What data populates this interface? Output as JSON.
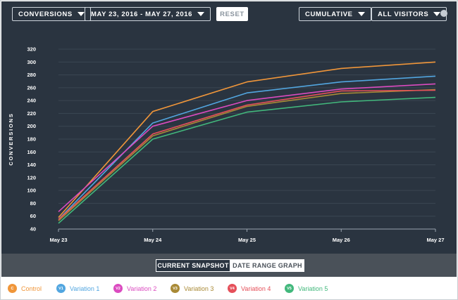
{
  "toolbar": {
    "metric_label": "CONVERSIONS",
    "date_range_label": "MAY 23, 2016 - MAY 27, 2016",
    "reset_label": "RESET",
    "mode_label": "CUMULATIVE",
    "segment_label": "ALL VISITORS"
  },
  "chart_data": {
    "type": "line",
    "ylabel": "CONVERSIONS",
    "xlabel": "",
    "categories": [
      "May 23",
      "May 24",
      "May 25",
      "May 26",
      "May 27"
    ],
    "ylim": [
      40,
      320
    ],
    "yticks": [
      40,
      60,
      80,
      100,
      120,
      140,
      160,
      180,
      200,
      220,
      240,
      260,
      280,
      300,
      320
    ],
    "grid": true,
    "legend": "bottom",
    "series": [
      {
        "name": "Control",
        "color": "#f0963a",
        "values": [
          58,
          223,
          269,
          290,
          300
        ]
      },
      {
        "name": "Variation 1",
        "color": "#52a6e0",
        "values": [
          55,
          205,
          252,
          269,
          278
        ]
      },
      {
        "name": "Variation 2",
        "color": "#db4bc0",
        "values": [
          67,
          200,
          240,
          258,
          266
        ]
      },
      {
        "name": "Variation 3",
        "color": "#a98a36",
        "values": [
          53,
          185,
          231,
          251,
          257
        ]
      },
      {
        "name": "Variation 4",
        "color": "#e5505a",
        "values": [
          55,
          188,
          233,
          255,
          256
        ]
      },
      {
        "name": "Variation 5",
        "color": "#42b87c",
        "values": [
          49,
          180,
          222,
          238,
          245
        ]
      }
    ]
  },
  "tabs": {
    "current_snapshot": "CURRENT SNAPSHOT",
    "date_range_graph": "DATE RANGE GRAPH"
  },
  "legend": [
    {
      "badge": "C",
      "label": "Control",
      "color": "#f0963a"
    },
    {
      "badge": "V1",
      "label": "Variation 1",
      "color": "#52a6e0"
    },
    {
      "badge": "V2",
      "label": "Variation 2",
      "color": "#db4bc0"
    },
    {
      "badge": "V3",
      "label": "Variation 3",
      "color": "#a98a36"
    },
    {
      "badge": "V4",
      "label": "Variation 4",
      "color": "#e5505a"
    },
    {
      "badge": "V5",
      "label": "Variation 5",
      "color": "#42b87c"
    }
  ]
}
